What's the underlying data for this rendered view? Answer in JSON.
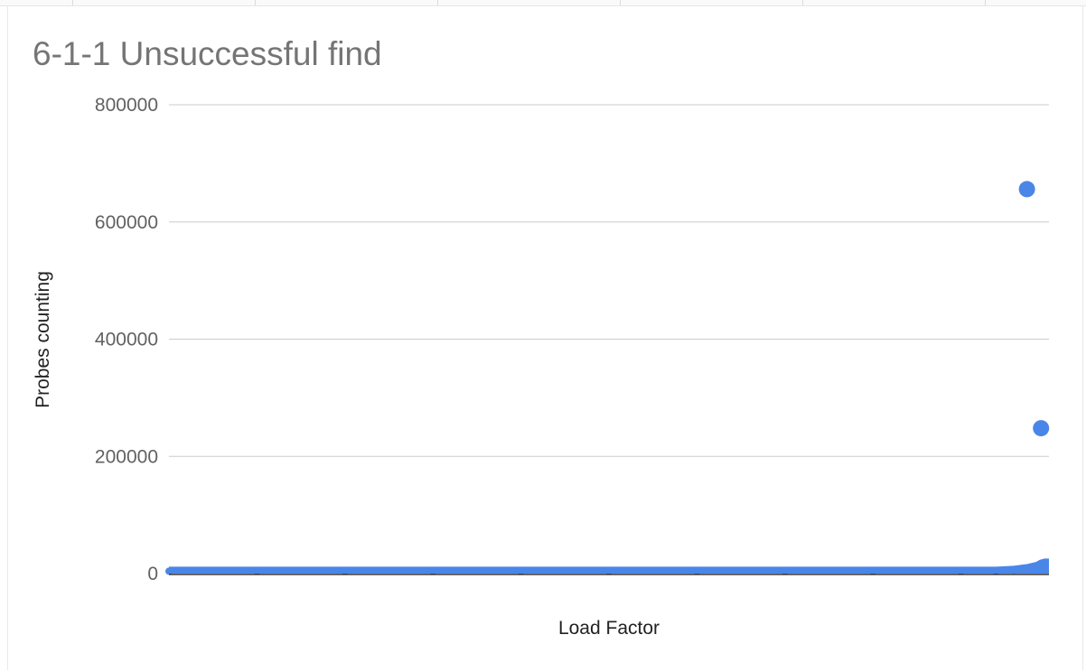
{
  "chart_data": {
    "type": "scatter",
    "title": "6-1-1 Unsuccessful find",
    "xlabel": "Load Factor",
    "ylabel": "Probes counting",
    "ylim": [
      0,
      800000
    ],
    "yticks": [
      0,
      200000,
      400000,
      600000,
      800000
    ],
    "ytick_labels": [
      "0",
      "200000",
      "400000",
      "600000",
      "800000"
    ],
    "xlim": [
      0,
      1
    ],
    "grid": true,
    "legend": "none",
    "series": [
      {
        "values": [
          {
            "x": 0.0,
            "y": 4000
          },
          {
            "x": 0.1,
            "y": 4000
          },
          {
            "x": 0.2,
            "y": 4000
          },
          {
            "x": 0.3,
            "y": 4000
          },
          {
            "x": 0.4,
            "y": 4000
          },
          {
            "x": 0.5,
            "y": 4000
          },
          {
            "x": 0.6,
            "y": 4000
          },
          {
            "x": 0.7,
            "y": 4000
          },
          {
            "x": 0.8,
            "y": 4000
          },
          {
            "x": 0.9,
            "y": 4000
          },
          {
            "x": 0.94,
            "y": 4000
          },
          {
            "x": 0.96,
            "y": 5500
          },
          {
            "x": 0.975,
            "y": 8500
          },
          {
            "x": 0.985,
            "y": 12000
          },
          {
            "x": 0.99,
            "y": 16000
          },
          {
            "x": 0.995,
            "y": 18000
          },
          {
            "x": 0.975,
            "y": 656000
          },
          {
            "x": 0.991,
            "y": 248000
          }
        ]
      }
    ],
    "color": "#4a86e8"
  }
}
